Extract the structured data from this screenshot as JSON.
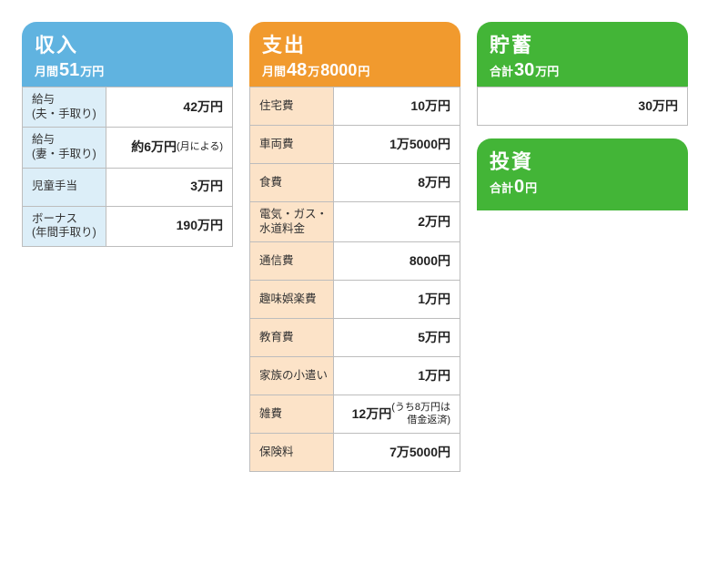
{
  "income": {
    "title": "収入",
    "sub_prefix": "月間",
    "sub_amount_big": "51",
    "sub_unit1": "万円",
    "rows": [
      {
        "label": "給与\n(夫・手取り)",
        "value": "42万円"
      },
      {
        "label": "給与\n(妻・手取り)",
        "value": "約6万円",
        "note": "(月による)"
      },
      {
        "label": "児童手当",
        "value": "3万円"
      },
      {
        "label": "ボーナス\n(年間手取り)",
        "value": "190万円"
      }
    ]
  },
  "expense": {
    "title": "支出",
    "sub_prefix": "月間",
    "sub_amount_big": "48",
    "sub_unit1": "万",
    "sub_amount_mid": "8000",
    "sub_unit2": "円",
    "rows": [
      {
        "label": "住宅費",
        "value": "10万円"
      },
      {
        "label": "車両費",
        "value": "1万5000円"
      },
      {
        "label": "食費",
        "value": "8万円"
      },
      {
        "label": "電気・ガス・\n水道料金",
        "value": "2万円"
      },
      {
        "label": "通信費",
        "value": "8000円"
      },
      {
        "label": "趣味娯楽費",
        "value": "1万円"
      },
      {
        "label": "教育費",
        "value": "5万円"
      },
      {
        "label": "家族の小遣い",
        "value": "1万円"
      },
      {
        "label": "雑費",
        "value": "12万円",
        "note": "(うち8万円は\n借金返済)"
      },
      {
        "label": "保険料",
        "value": "7万5000円"
      }
    ]
  },
  "savings": {
    "title": "貯蓄",
    "sub_prefix": "合計",
    "sub_amount_big": "30",
    "sub_unit1": "万円",
    "rows": [
      {
        "value": "30万円"
      }
    ]
  },
  "invest": {
    "title": "投資",
    "sub_prefix": "合計",
    "sub_amount_big": "0",
    "sub_unit1": "円"
  },
  "colors": {
    "blue": "#60b3e0",
    "orange": "#f19a2e",
    "green": "#43b537",
    "blue_tint": "#dceef8",
    "orange_tint": "#fce3c8",
    "border": "#bdbdbd"
  }
}
